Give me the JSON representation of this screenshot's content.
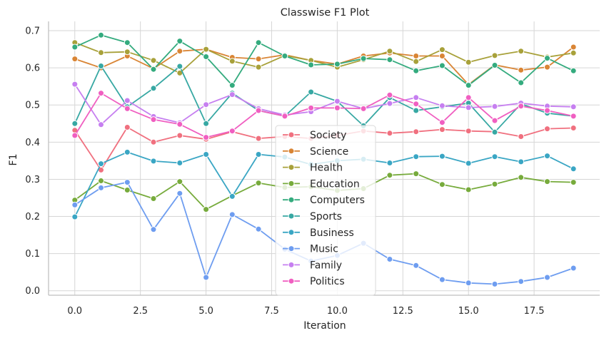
{
  "chart_data": {
    "type": "line",
    "title": "Classwise F1 Plot",
    "xlabel": "Iteration",
    "ylabel": "F1",
    "xlim": [
      -1.0,
      20.0
    ],
    "ylim": [
      -0.012,
      0.725
    ],
    "xticks": [
      0.0,
      2.5,
      5.0,
      7.5,
      10.0,
      12.5,
      15.0,
      17.5
    ],
    "xtick_labels": [
      "0.0",
      "2.5",
      "5.0",
      "7.5",
      "10.0",
      "12.5",
      "15.0",
      "17.5"
    ],
    "yticks": [
      0.0,
      0.1,
      0.2,
      0.3,
      0.4,
      0.5,
      0.6,
      0.7
    ],
    "ytick_labels": [
      "0.0",
      "0.1",
      "0.2",
      "0.3",
      "0.4",
      "0.5",
      "0.6",
      "0.7"
    ],
    "grid": true,
    "legend_position": "center",
    "x": [
      0,
      1,
      2,
      3,
      4,
      5,
      6,
      7,
      8,
      9,
      10,
      11,
      12,
      13,
      14,
      15,
      16,
      17,
      18,
      19
    ],
    "series": [
      {
        "name": "Society",
        "color": "#f0707f",
        "values": [
          0.432,
          0.325,
          0.44,
          0.4,
          0.418,
          0.408,
          0.428,
          0.41,
          0.415,
          0.41,
          0.418,
          0.43,
          0.424,
          0.428,
          0.434,
          0.43,
          0.428,
          0.415,
          0.436,
          0.438
        ]
      },
      {
        "name": "Science",
        "color": "#d98535",
        "values": [
          0.624,
          0.6,
          0.632,
          0.598,
          0.645,
          0.65,
          0.628,
          0.624,
          0.635,
          0.62,
          0.61,
          0.632,
          0.64,
          0.632,
          0.632,
          0.555,
          0.608,
          0.594,
          0.602,
          0.656
        ]
      },
      {
        "name": "Health",
        "color": "#a8a13a",
        "values": [
          0.668,
          0.641,
          0.643,
          0.62,
          0.586,
          0.65,
          0.618,
          0.602,
          0.633,
          0.62,
          0.602,
          0.622,
          0.645,
          0.617,
          0.649,
          0.615,
          0.633,
          0.645,
          0.629,
          0.64
        ]
      },
      {
        "name": "Education",
        "color": "#77ab3c",
        "values": [
          0.244,
          0.296,
          0.271,
          0.248,
          0.294,
          0.219,
          0.256,
          0.29,
          0.278,
          0.28,
          0.27,
          0.275,
          0.311,
          0.315,
          0.286,
          0.272,
          0.287,
          0.305,
          0.294,
          0.292
        ]
      },
      {
        "name": "Computers",
        "color": "#34ab7e",
        "values": [
          0.656,
          0.688,
          0.668,
          0.596,
          0.672,
          0.63,
          0.553,
          0.668,
          0.632,
          0.608,
          0.61,
          0.625,
          0.622,
          0.592,
          0.606,
          0.553,
          0.607,
          0.56,
          0.626,
          0.592
        ]
      },
      {
        "name": "Sports",
        "color": "#37a8a3",
        "values": [
          0.45,
          0.605,
          0.495,
          0.545,
          0.604,
          0.45,
          0.532,
          0.485,
          0.47,
          0.535,
          0.51,
          0.444,
          0.52,
          0.485,
          0.495,
          0.505,
          0.427,
          0.503,
          0.478,
          0.47
        ]
      },
      {
        "name": "Business",
        "color": "#3aa6c4",
        "values": [
          0.199,
          0.342,
          0.373,
          0.349,
          0.344,
          0.367,
          0.254,
          0.367,
          0.36,
          0.34,
          0.35,
          0.354,
          0.344,
          0.361,
          0.362,
          0.343,
          0.361,
          0.347,
          0.363,
          0.328
        ]
      },
      {
        "name": "Music",
        "color": "#6e9df0",
        "values": [
          0.231,
          0.277,
          0.292,
          0.165,
          0.262,
          0.036,
          0.205,
          0.166,
          0.112,
          0.08,
          0.095,
          0.128,
          0.085,
          0.068,
          0.03,
          0.021,
          0.018,
          0.025,
          0.036,
          0.061
        ]
      },
      {
        "name": "Family",
        "color": "#c67ff0",
        "values": [
          0.556,
          0.447,
          0.512,
          0.469,
          0.452,
          0.501,
          0.528,
          0.49,
          0.473,
          0.482,
          0.51,
          0.49,
          0.504,
          0.52,
          0.498,
          0.493,
          0.496,
          0.505,
          0.497,
          0.495
        ]
      },
      {
        "name": "Politics",
        "color": "#f05fc1",
        "values": [
          0.418,
          0.532,
          0.49,
          0.461,
          0.448,
          0.413,
          0.43,
          0.485,
          0.47,
          0.492,
          0.492,
          0.49,
          0.527,
          0.503,
          0.453,
          0.52,
          0.458,
          0.497,
          0.485,
          0.47
        ]
      }
    ]
  }
}
